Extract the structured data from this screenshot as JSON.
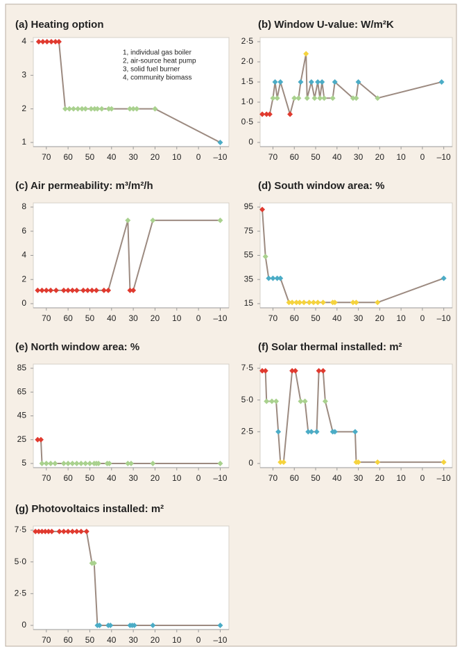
{
  "chart_data": [
    {
      "type": "line",
      "title": "(a) Heating option",
      "annotations": [
        "1, individual gas boiler",
        "2, air-source heat pump",
        "3, solid fuel burner",
        "4, community biomass"
      ],
      "x": [
        73.5,
        71.6,
        69.7,
        67.7,
        65.8,
        64.2,
        61.3,
        59.4,
        57.5,
        55.5,
        53.6,
        52,
        49.4,
        47.8,
        46.5,
        44.5,
        41.3,
        40,
        31.6,
        30,
        28.4,
        20,
        -10
      ],
      "values": [
        4,
        4,
        4,
        4,
        4,
        4,
        2,
        2,
        2,
        2,
        2,
        2,
        2,
        2,
        2,
        2,
        2,
        2,
        2,
        2,
        2,
        2,
        1
      ],
      "colors": [
        "#e03a2f",
        "#e03a2f",
        "#e03a2f",
        "#e03a2f",
        "#e03a2f",
        "#e03a2f",
        "#a9d18e",
        "#a9d18e",
        "#a9d18e",
        "#a9d18e",
        "#a9d18e",
        "#a9d18e",
        "#a9d18e",
        "#a9d18e",
        "#a9d18e",
        "#a9d18e",
        "#a9d18e",
        "#a9d18e",
        "#a9d18e",
        "#a9d18e",
        "#a9d18e",
        "#a9d18e",
        "#4bacc6"
      ],
      "line_color": "#9c8a80",
      "xlim": [
        76,
        -14
      ],
      "xticks": [
        70,
        60,
        50,
        40,
        30,
        20,
        10,
        0,
        {
          "value": -10,
          "label": "–10"
        }
      ],
      "ylim": [
        1,
        4
      ],
      "yticks": [
        1,
        2,
        3,
        4
      ]
    },
    {
      "type": "line",
      "title": "(b) Window U-value: W/m²K",
      "x": [
        75,
        73,
        71.5,
        70,
        69,
        68,
        66.5,
        62,
        60,
        58,
        57,
        54.5,
        54,
        52,
        50.5,
        49,
        48,
        47,
        46,
        42,
        41,
        32.5,
        31,
        30,
        21,
        -9
      ],
      "values": [
        0.7,
        0.7,
        0.7,
        1.1,
        1.5,
        1.1,
        1.5,
        0.7,
        1.1,
        1.1,
        1.5,
        2.2,
        1.1,
        1.5,
        1.1,
        1.5,
        1.1,
        1.5,
        1.1,
        1.1,
        1.5,
        1.1,
        1.1,
        1.5,
        1.1,
        1.5
      ],
      "colors": [
        "#e03a2f",
        "#e03a2f",
        "#e03a2f",
        "#a9d18e",
        "#4bacc6",
        "#a9d18e",
        "#4bacc6",
        "#e03a2f",
        "#a9d18e",
        "#a9d18e",
        "#4bacc6",
        "#f5d33d",
        "#a9d18e",
        "#4bacc6",
        "#a9d18e",
        "#4bacc6",
        "#a9d18e",
        "#4bacc6",
        "#a9d18e",
        "#a9d18e",
        "#4bacc6",
        "#a9d18e",
        "#a9d18e",
        "#4bacc6",
        "#a9d18e",
        "#4bacc6"
      ],
      "line_color": "#9c8a80",
      "xlim": [
        76,
        -14
      ],
      "xticks": [
        70,
        60,
        50,
        40,
        30,
        20,
        10,
        0,
        {
          "value": -10,
          "label": "–10"
        }
      ],
      "ylim": [
        0,
        2.5
      ],
      "yticks": [
        0,
        {
          "value": 0.5,
          "label": "0·5"
        },
        {
          "value": 1,
          "label": "1·0"
        },
        {
          "value": 1.5,
          "label": "1·5"
        },
        {
          "value": 2,
          "label": "2·0"
        },
        {
          "value": 2.5,
          "label": "2·5"
        }
      ]
    },
    {
      "type": "line",
      "title": "(c) Air permeability: m³/m²/h",
      "x": [
        74,
        72,
        70,
        68,
        65.5,
        62,
        60,
        58,
        56,
        53,
        51,
        49,
        47,
        43.5,
        41.5,
        32.5,
        31.5,
        30,
        21,
        -10
      ],
      "values": [
        1.1,
        1.1,
        1.1,
        1.1,
        1.1,
        1.1,
        1.1,
        1.1,
        1.1,
        1.1,
        1.1,
        1.1,
        1.1,
        1.1,
        1.1,
        6.9,
        1.1,
        1.1,
        6.9,
        6.9
      ],
      "colors": [
        "#e03a2f",
        "#e03a2f",
        "#e03a2f",
        "#e03a2f",
        "#e03a2f",
        "#e03a2f",
        "#e03a2f",
        "#e03a2f",
        "#e03a2f",
        "#e03a2f",
        "#e03a2f",
        "#e03a2f",
        "#e03a2f",
        "#e03a2f",
        "#e03a2f",
        "#a9d18e",
        "#e03a2f",
        "#e03a2f",
        "#a9d18e",
        "#a9d18e"
      ],
      "line_color": "#9c8a80",
      "xlim": [
        76,
        -14
      ],
      "xticks": [
        70,
        60,
        50,
        40,
        30,
        20,
        10,
        0,
        {
          "value": -10,
          "label": "–10"
        }
      ],
      "ylim": [
        0,
        8
      ],
      "yticks": [
        0,
        2,
        4,
        6,
        8
      ]
    },
    {
      "type": "line",
      "title": "(d) South window area: %",
      "x": [
        75,
        73.5,
        72,
        70,
        68,
        66.5,
        62.5,
        61,
        59,
        57.5,
        55.5,
        53,
        51,
        49,
        46.5,
        42,
        41,
        32.5,
        31,
        21,
        -10
      ],
      "values": [
        93,
        54,
        36,
        36,
        36,
        36,
        16,
        16,
        16,
        16,
        16,
        16,
        16,
        16,
        16,
        16,
        16,
        16,
        16,
        16,
        36
      ],
      "colors": [
        "#e03a2f",
        "#a9d18e",
        "#4bacc6",
        "#4bacc6",
        "#4bacc6",
        "#4bacc6",
        "#f5d33d",
        "#f5d33d",
        "#f5d33d",
        "#f5d33d",
        "#f5d33d",
        "#f5d33d",
        "#f5d33d",
        "#f5d33d",
        "#f5d33d",
        "#f5d33d",
        "#f5d33d",
        "#f5d33d",
        "#f5d33d",
        "#f5d33d",
        "#4bacc6"
      ],
      "line_color": "#9c8a80",
      "xlim": [
        76,
        -14
      ],
      "xticks": [
        70,
        60,
        50,
        40,
        30,
        20,
        10,
        0,
        {
          "value": -10,
          "label": "–10"
        }
      ],
      "ylim": [
        15,
        95
      ],
      "yticks": [
        15,
        35,
        55,
        75,
        95
      ]
    },
    {
      "type": "line",
      "title": "(e) North window area: %",
      "x": [
        74,
        72.5,
        72,
        70,
        68,
        66,
        62,
        60,
        58,
        56,
        54,
        52,
        50,
        48,
        47,
        46,
        42,
        41,
        32.5,
        31,
        21,
        -10
      ],
      "values": [
        25,
        25,
        5,
        5,
        5,
        5,
        5,
        5,
        5,
        5,
        5,
        5,
        5,
        5,
        5,
        5,
        5,
        5,
        5,
        5,
        5,
        5
      ],
      "colors": [
        "#e03a2f",
        "#e03a2f",
        "#a9d18e",
        "#a9d18e",
        "#a9d18e",
        "#a9d18e",
        "#a9d18e",
        "#a9d18e",
        "#a9d18e",
        "#a9d18e",
        "#a9d18e",
        "#a9d18e",
        "#a9d18e",
        "#a9d18e",
        "#a9d18e",
        "#a9d18e",
        "#a9d18e",
        "#a9d18e",
        "#a9d18e",
        "#a9d18e",
        "#a9d18e",
        "#a9d18e"
      ],
      "line_color": "#9c8a80",
      "xlim": [
        76,
        -14
      ],
      "xticks": [
        70,
        60,
        50,
        40,
        30,
        20,
        10,
        0,
        {
          "value": -10,
          "label": "–10"
        }
      ],
      "ylim": [
        5,
        85
      ],
      "yticks": [
        5,
        25,
        45,
        65,
        85
      ]
    },
    {
      "type": "line",
      "title": "(f) Solar thermal installed: m²",
      "x": [
        75,
        73.5,
        73,
        70.5,
        68.5,
        67.5,
        66.5,
        65,
        61,
        59.5,
        57,
        55,
        53.5,
        52,
        49.5,
        48.5,
        46.5,
        45.5,
        42,
        41,
        31.5,
        31,
        30,
        21,
        -10
      ],
      "values": [
        7.3,
        7.3,
        4.9,
        4.9,
        4.9,
        2.5,
        0.1,
        0.1,
        7.3,
        7.3,
        4.9,
        4.9,
        2.5,
        2.5,
        2.5,
        7.3,
        7.3,
        4.9,
        2.5,
        2.5,
        2.5,
        0.1,
        0.1,
        0.1,
        0.1
      ],
      "colors": [
        "#e03a2f",
        "#e03a2f",
        "#a9d18e",
        "#a9d18e",
        "#a9d18e",
        "#4bacc6",
        "#f5d33d",
        "#f5d33d",
        "#e03a2f",
        "#e03a2f",
        "#a9d18e",
        "#a9d18e",
        "#4bacc6",
        "#4bacc6",
        "#4bacc6",
        "#e03a2f",
        "#e03a2f",
        "#a9d18e",
        "#4bacc6",
        "#4bacc6",
        "#4bacc6",
        "#f5d33d",
        "#f5d33d",
        "#f5d33d",
        "#f5d33d"
      ],
      "line_color": "#9c8a80",
      "xlim": [
        76,
        -14
      ],
      "xticks": [
        70,
        60,
        50,
        40,
        30,
        20,
        10,
        0,
        {
          "value": -10,
          "label": "–10"
        }
      ],
      "ylim": [
        0,
        7.5
      ],
      "yticks": [
        0,
        {
          "value": 2.5,
          "label": "2·5"
        },
        {
          "value": 5,
          "label": "5·0"
        },
        {
          "value": 7.5,
          "label": "7·5"
        }
      ]
    },
    {
      "type": "line",
      "title": "(g) Photovoltaics installed: m²",
      "x": [
        75,
        73.5,
        72,
        70.5,
        69,
        67.5,
        64,
        62,
        60,
        58,
        56,
        54,
        51.5,
        49,
        48,
        46.5,
        45.5,
        41.5,
        40.5,
        31.5,
        30.5,
        29.5,
        21,
        -10
      ],
      "values": [
        7.4,
        7.4,
        7.4,
        7.4,
        7.4,
        7.4,
        7.4,
        7.4,
        7.4,
        7.4,
        7.4,
        7.4,
        7.4,
        4.9,
        4.9,
        0,
        0,
        0,
        0,
        0,
        0,
        0,
        0,
        0
      ],
      "colors": [
        "#e03a2f",
        "#e03a2f",
        "#e03a2f",
        "#e03a2f",
        "#e03a2f",
        "#e03a2f",
        "#e03a2f",
        "#e03a2f",
        "#e03a2f",
        "#e03a2f",
        "#e03a2f",
        "#e03a2f",
        "#e03a2f",
        "#a9d18e",
        "#a9d18e",
        "#4bacc6",
        "#4bacc6",
        "#4bacc6",
        "#4bacc6",
        "#4bacc6",
        "#4bacc6",
        "#4bacc6",
        "#4bacc6",
        "#4bacc6"
      ],
      "line_color": "#9c8a80",
      "xlim": [
        76,
        -14
      ],
      "xticks": [
        70,
        60,
        50,
        40,
        30,
        20,
        10,
        0,
        {
          "value": -10,
          "label": "–10"
        }
      ],
      "ylim": [
        0,
        7.5
      ],
      "yticks": [
        0,
        {
          "value": 2.5,
          "label": "2·5"
        },
        {
          "value": 5,
          "label": "5·0"
        },
        {
          "value": 7.5,
          "label": "7·5"
        }
      ]
    }
  ]
}
